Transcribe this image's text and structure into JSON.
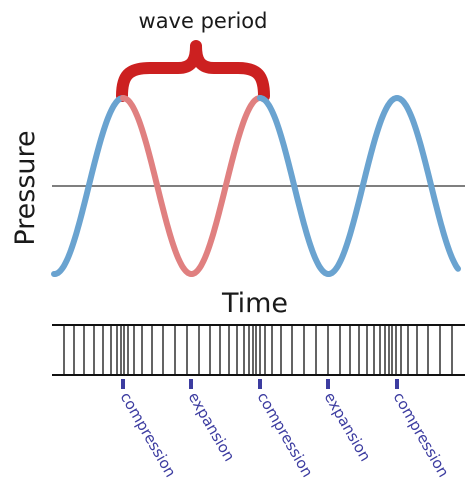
{
  "labels": {
    "wave_period": "wave period",
    "y_axis": "Pressure",
    "x_axis": "Time"
  },
  "phases": [
    {
      "label": "compression"
    },
    {
      "label": "expansion"
    },
    {
      "label": "compression"
    },
    {
      "label": "expansion"
    },
    {
      "label": "compression"
    }
  ],
  "colors": {
    "wave": "#6aa3d0",
    "period_highlight": "#e08080",
    "brace": "#cc2020",
    "baseline": "#333333",
    "phase_marker": "#3c3ca0",
    "phase_text": "#3c3ca0",
    "line_strip": "#111111"
  }
}
